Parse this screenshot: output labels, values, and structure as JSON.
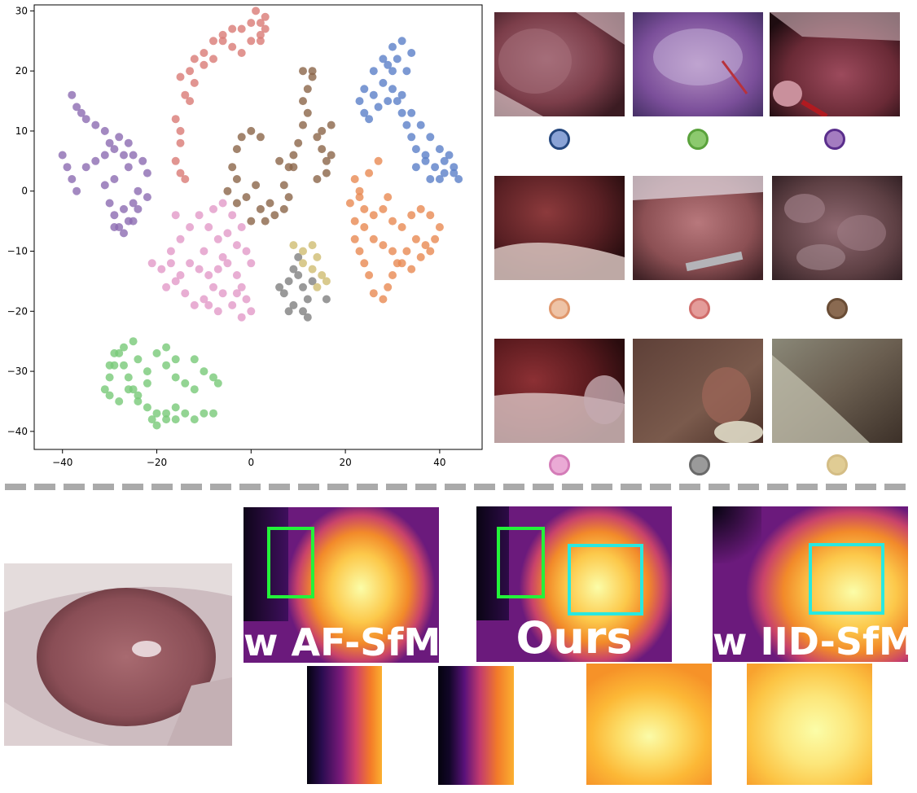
{
  "chart_data": {
    "type": "scatter",
    "title": "",
    "xlabel": "",
    "ylabel": "",
    "xlim": [
      -46,
      49
    ],
    "ylim": [
      -43,
      31
    ],
    "xticks": [
      -40,
      -20,
      0,
      20,
      40
    ],
    "yticks": [
      -40,
      -30,
      -20,
      -10,
      0,
      10,
      20,
      30
    ],
    "grid": false,
    "series": [
      {
        "color": "#8c6bb1",
        "points": [
          [
            -40,
            6
          ],
          [
            -39,
            4
          ],
          [
            -38,
            2
          ],
          [
            -37,
            0
          ],
          [
            -35,
            4
          ],
          [
            -33,
            5
          ],
          [
            -31,
            6
          ],
          [
            -29,
            7
          ],
          [
            -27,
            6
          ],
          [
            -26,
            4
          ],
          [
            -29,
            2
          ],
          [
            -31,
            1
          ],
          [
            -30,
            -2
          ],
          [
            -29,
            -4
          ],
          [
            -27,
            -3
          ],
          [
            -25,
            -2
          ],
          [
            -24,
            0
          ],
          [
            -25,
            -5
          ],
          [
            -27,
            -7
          ],
          [
            -29,
            -6
          ],
          [
            -37,
            14
          ],
          [
            -35,
            12
          ],
          [
            -33,
            11
          ],
          [
            -31,
            10
          ],
          [
            -30,
            8
          ],
          [
            -28,
            9
          ],
          [
            -26,
            8
          ],
          [
            -25,
            6
          ],
          [
            -23,
            5
          ],
          [
            -22,
            3
          ],
          [
            -22,
            -1
          ],
          [
            -24,
            -3
          ],
          [
            -26,
            -5
          ],
          [
            -28,
            -6
          ],
          [
            -38,
            16
          ],
          [
            -36,
            13
          ]
        ]
      },
      {
        "color": "#d97b76",
        "points": [
          [
            -14,
            2
          ],
          [
            -16,
            5
          ],
          [
            -15,
            8
          ],
          [
            -16,
            12
          ],
          [
            -14,
            16
          ],
          [
            -15,
            19
          ],
          [
            -13,
            20
          ],
          [
            -12,
            22
          ],
          [
            -10,
            23
          ],
          [
            -8,
            25
          ],
          [
            -6,
            26
          ],
          [
            -4,
            27
          ],
          [
            -2,
            27
          ],
          [
            0,
            28
          ],
          [
            2,
            28
          ],
          [
            3,
            27
          ],
          [
            2,
            25
          ],
          [
            0,
            25
          ],
          [
            -2,
            23
          ],
          [
            -4,
            24
          ],
          [
            -6,
            25
          ],
          [
            -8,
            22
          ],
          [
            -10,
            21
          ],
          [
            -12,
            18
          ],
          [
            -13,
            15
          ],
          [
            -15,
            10
          ],
          [
            -15,
            3
          ],
          [
            1,
            30
          ],
          [
            3,
            29
          ],
          [
            2,
            26
          ]
        ]
      },
      {
        "color": "#8b6548",
        "points": [
          [
            -3,
            7
          ],
          [
            -2,
            9
          ],
          [
            0,
            10
          ],
          [
            2,
            9
          ],
          [
            -4,
            4
          ],
          [
            -3,
            2
          ],
          [
            -5,
            0
          ],
          [
            -3,
            -2
          ],
          [
            -1,
            -1
          ],
          [
            1,
            1
          ],
          [
            2,
            -3
          ],
          [
            3,
            -5
          ],
          [
            5,
            -4
          ],
          [
            7,
            -3
          ],
          [
            8,
            -1
          ],
          [
            7,
            1
          ],
          [
            8,
            4
          ],
          [
            9,
            6
          ],
          [
            10,
            8
          ],
          [
            11,
            11
          ],
          [
            12,
            13
          ],
          [
            11,
            15
          ],
          [
            12,
            17
          ],
          [
            13,
            19
          ],
          [
            11,
            20
          ],
          [
            13,
            20
          ],
          [
            14,
            9
          ],
          [
            15,
            7
          ],
          [
            16,
            5
          ],
          [
            17,
            6
          ],
          [
            16,
            3
          ],
          [
            14,
            2
          ],
          [
            15,
            10
          ],
          [
            17,
            11
          ],
          [
            9,
            4
          ],
          [
            6,
            5
          ],
          [
            4,
            -2
          ],
          [
            0,
            -5
          ]
        ]
      },
      {
        "color": "#5b80c8",
        "points": [
          [
            24,
            17
          ],
          [
            23,
            15
          ],
          [
            24,
            13
          ],
          [
            25,
            12
          ],
          [
            27,
            14
          ],
          [
            29,
            15
          ],
          [
            31,
            15
          ],
          [
            32,
            13
          ],
          [
            33,
            11
          ],
          [
            34,
            9
          ],
          [
            35,
            7
          ],
          [
            37,
            5
          ],
          [
            39,
            4
          ],
          [
            41,
            3
          ],
          [
            43,
            4
          ],
          [
            44,
            2
          ],
          [
            42,
            6
          ],
          [
            40,
            7
          ],
          [
            38,
            9
          ],
          [
            36,
            11
          ],
          [
            34,
            13
          ],
          [
            32,
            16
          ],
          [
            30,
            17
          ],
          [
            28,
            18
          ],
          [
            26,
            20
          ],
          [
            28,
            22
          ],
          [
            30,
            24
          ],
          [
            32,
            25
          ],
          [
            31,
            22
          ],
          [
            29,
            21
          ],
          [
            35,
            4
          ],
          [
            37,
            6
          ],
          [
            41,
            5
          ],
          [
            43,
            3
          ],
          [
            38,
            2
          ],
          [
            40,
            2
          ],
          [
            26,
            16
          ],
          [
            33,
            20
          ],
          [
            34,
            23
          ],
          [
            30,
            20
          ]
        ]
      },
      {
        "color": "#e88a53",
        "points": [
          [
            22,
            2
          ],
          [
            23,
            0
          ],
          [
            24,
            -3
          ],
          [
            26,
            -4
          ],
          [
            28,
            -3
          ],
          [
            30,
            -5
          ],
          [
            32,
            -6
          ],
          [
            34,
            -4
          ],
          [
            36,
            -3
          ],
          [
            38,
            -4
          ],
          [
            40,
            -6
          ],
          [
            39,
            -8
          ],
          [
            37,
            -9
          ],
          [
            35,
            -8
          ],
          [
            33,
            -10
          ],
          [
            31,
            -12
          ],
          [
            30,
            -14
          ],
          [
            29,
            -16
          ],
          [
            28,
            -18
          ],
          [
            26,
            -17
          ],
          [
            25,
            -14
          ],
          [
            24,
            -12
          ],
          [
            23,
            -10
          ],
          [
            22,
            -8
          ],
          [
            24,
            -6
          ],
          [
            26,
            -8
          ],
          [
            28,
            -9
          ],
          [
            30,
            -10
          ],
          [
            32,
            -12
          ],
          [
            34,
            -13
          ],
          [
            36,
            -11
          ],
          [
            38,
            -10
          ],
          [
            22,
            -5
          ],
          [
            21,
            -2
          ],
          [
            23,
            -1
          ],
          [
            25,
            3
          ],
          [
            27,
            5
          ],
          [
            29,
            -1
          ]
        ]
      },
      {
        "color": "#e29ac8",
        "points": [
          [
            -21,
            -12
          ],
          [
            -19,
            -13
          ],
          [
            -17,
            -12
          ],
          [
            -15,
            -14
          ],
          [
            -13,
            -12
          ],
          [
            -11,
            -13
          ],
          [
            -9,
            -14
          ],
          [
            -7,
            -13
          ],
          [
            -5,
            -12
          ],
          [
            -3,
            -14
          ],
          [
            -2,
            -16
          ],
          [
            -1,
            -18
          ],
          [
            0,
            -20
          ],
          [
            -2,
            -21
          ],
          [
            -4,
            -19
          ],
          [
            -6,
            -17
          ],
          [
            -8,
            -16
          ],
          [
            -10,
            -18
          ],
          [
            -12,
            -19
          ],
          [
            -14,
            -17
          ],
          [
            -16,
            -15
          ],
          [
            -11,
            -4
          ],
          [
            -9,
            -6
          ],
          [
            -7,
            -8
          ],
          [
            -5,
            -7
          ],
          [
            -3,
            -9
          ],
          [
            -1,
            -10
          ],
          [
            0,
            -12
          ],
          [
            -13,
            -6
          ],
          [
            -15,
            -8
          ],
          [
            -17,
            -10
          ],
          [
            -8,
            -3
          ],
          [
            -6,
            -2
          ],
          [
            -4,
            -4
          ],
          [
            -2,
            -6
          ],
          [
            -16,
            -4
          ],
          [
            -10,
            -10
          ],
          [
            -6,
            -11
          ],
          [
            -9,
            -19
          ],
          [
            -7,
            -20
          ],
          [
            -3,
            -17
          ],
          [
            -18,
            -16
          ]
        ]
      },
      {
        "color": "#7f7f7f",
        "points": [
          [
            6,
            -16
          ],
          [
            7,
            -17
          ],
          [
            8,
            -15
          ],
          [
            9,
            -13
          ],
          [
            10,
            -14
          ],
          [
            11,
            -16
          ],
          [
            12,
            -18
          ],
          [
            11,
            -20
          ],
          [
            9,
            -19
          ],
          [
            13,
            -15
          ],
          [
            8,
            -20
          ],
          [
            12,
            -21
          ],
          [
            16,
            -18
          ],
          [
            10,
            -11
          ]
        ]
      },
      {
        "color": "#cfbd72",
        "points": [
          [
            9,
            -9
          ],
          [
            11,
            -10
          ],
          [
            13,
            -9
          ],
          [
            14,
            -11
          ],
          [
            13,
            -13
          ],
          [
            15,
            -14
          ],
          [
            14,
            -16
          ],
          [
            11,
            -12
          ],
          [
            16,
            -15
          ]
        ]
      },
      {
        "color": "#78c978",
        "points": [
          [
            -31,
            -33
          ],
          [
            -30,
            -31
          ],
          [
            -29,
            -29
          ],
          [
            -28,
            -27
          ],
          [
            -27,
            -29
          ],
          [
            -26,
            -31
          ],
          [
            -25,
            -33
          ],
          [
            -24,
            -35
          ],
          [
            -22,
            -36
          ],
          [
            -20,
            -37
          ],
          [
            -18,
            -38
          ],
          [
            -16,
            -38
          ],
          [
            -14,
            -37
          ],
          [
            -12,
            -38
          ],
          [
            -10,
            -37
          ],
          [
            -8,
            -37
          ],
          [
            -12,
            -33
          ],
          [
            -14,
            -32
          ],
          [
            -16,
            -31
          ],
          [
            -18,
            -29
          ],
          [
            -20,
            -27
          ],
          [
            -18,
            -26
          ],
          [
            -16,
            -28
          ],
          [
            -22,
            -32
          ],
          [
            -24,
            -34
          ],
          [
            -26,
            -33
          ],
          [
            -28,
            -35
          ],
          [
            -30,
            -34
          ],
          [
            -30,
            -29
          ],
          [
            -29,
            -27
          ],
          [
            -27,
            -26
          ],
          [
            -25,
            -25
          ],
          [
            -24,
            -28
          ],
          [
            -22,
            -30
          ],
          [
            -12,
            -28
          ],
          [
            -10,
            -30
          ],
          [
            -8,
            -31
          ],
          [
            -7,
            -32
          ],
          [
            -18,
            -37
          ],
          [
            -16,
            -36
          ],
          [
            -20,
            -39
          ],
          [
            -21,
            -38
          ]
        ]
      }
    ]
  },
  "colors": {
    "dots": [
      {
        "fill": "#8aa3d6",
        "ring": "#24477e"
      },
      {
        "fill": "#8cc96e",
        "ring": "#5aa23c"
      },
      {
        "fill": "#a47cc0",
        "ring": "#5a2e8c"
      },
      {
        "fill": "#eec3a6",
        "ring": "#e0976c"
      },
      {
        "fill": "#e49c9a",
        "ring": "#d06d6b"
      },
      {
        "fill": "#8a6a51",
        "ring": "#6a4d36"
      },
      {
        "fill": "#eaaad5",
        "ring": "#d47cb8"
      },
      {
        "fill": "#9a9a9a",
        "ring": "#6a6a6a"
      },
      {
        "fill": "#e0cc94",
        "ring": "#d4bd85"
      }
    ],
    "roi_green": "#23f23a",
    "roi_cyan": "#28e8e0"
  },
  "depth_panels": [
    {
      "label": "w AF-SfM"
    },
    {
      "label": "Ours"
    },
    {
      "label": "w IID-SfM"
    }
  ]
}
